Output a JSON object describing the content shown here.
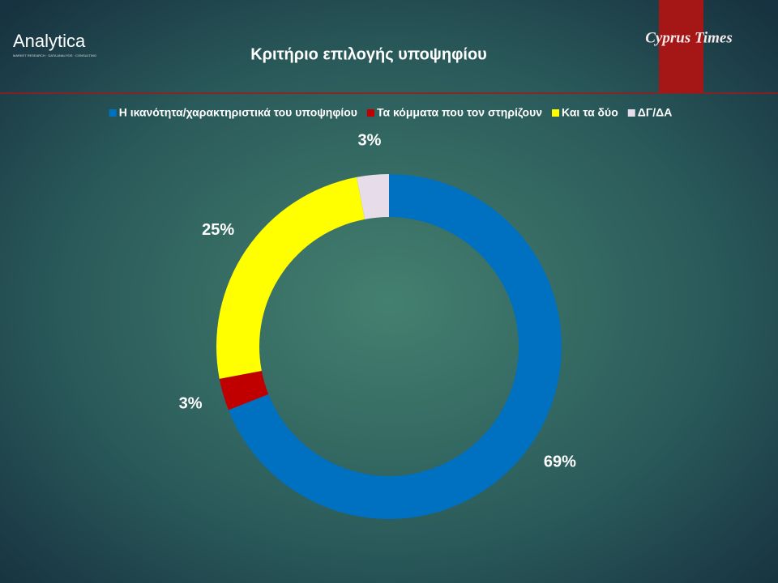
{
  "branding": {
    "logo": "Analytica",
    "logo_tagline": "MARKET RESEARCH · DATA ANALYSIS · CONSULTING",
    "publisher": "Cyprus Times"
  },
  "chart_data": {
    "type": "doughnut",
    "title": "Κριτήριο επιλογής υποψηφίου",
    "categories": [
      "Η ικανότητα/χαρακτηριστικά του υποψηφίου",
      "Τα κόμματα που τον στηρίζουν",
      "Και τα δύο",
      "ΔΓ/ΔΑ"
    ],
    "values": [
      69,
      3,
      25,
      3
    ],
    "value_labels": [
      "69%",
      "3%",
      "25%",
      "3%"
    ],
    "colors": [
      "#0070c0",
      "#c00000",
      "#ffff00",
      "#e6dcea"
    ],
    "legend": "top"
  }
}
